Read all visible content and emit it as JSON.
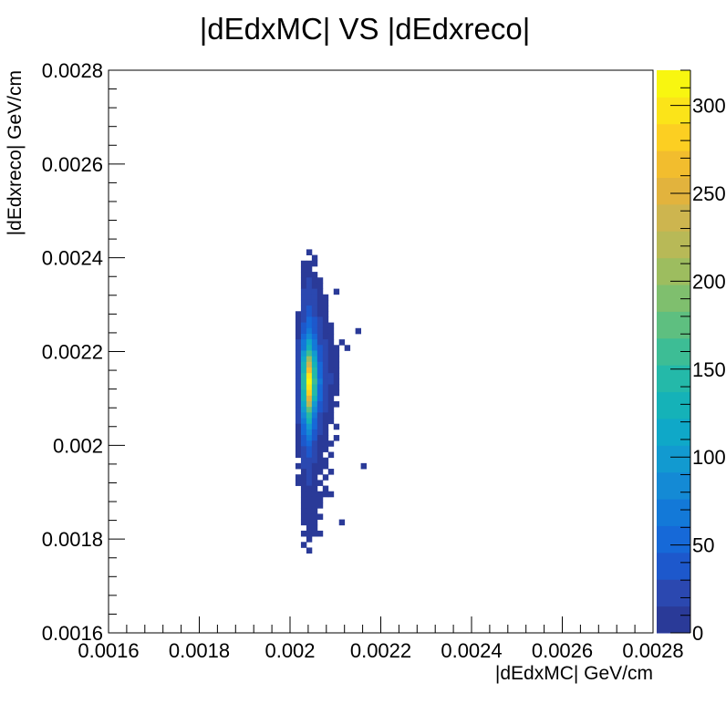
{
  "chart_data": {
    "type": "heatmap",
    "title": "|dEdxMC| VS |dEdxreco|",
    "xlabel": "|dEdxMC| GeV/cm",
    "ylabel": "|dEdxreco| GeV/cm",
    "xlim": [
      0.0016,
      0.0028
    ],
    "ylim": [
      0.0016,
      0.0028
    ],
    "x_ticks": [
      "0.0016",
      "0.0018",
      "0.002",
      "0.0022",
      "0.0024",
      "0.0026",
      "0.0028"
    ],
    "y_ticks": [
      "0.0016",
      "0.0018",
      "0.002",
      "0.0022",
      "0.0024",
      "0.0026",
      "0.0028"
    ],
    "colorbar": {
      "min": 0,
      "max": 320,
      "ticks": [
        "0",
        "50",
        "100",
        "150",
        "200",
        "250",
        "300"
      ],
      "tick_values": [
        0,
        50,
        100,
        150,
        200,
        250,
        300
      ],
      "colors": [
        "#2a3a98",
        "#2b48b0",
        "#1d58cc",
        "#1669d8",
        "#1379d8",
        "#148ad5",
        "#129ad0",
        "#0fa8c8",
        "#15b2b8",
        "#24b9a9",
        "#3dbd95",
        "#5ebf80",
        "#7fbf6e",
        "#9dbd5f",
        "#b8b957",
        "#cdb54f",
        "#e2b33d",
        "#f2bd2e",
        "#fccf22",
        "#fbe419",
        "#f8f610"
      ]
    },
    "grid": false,
    "legend": "none",
    "bin_width": 1.2e-05,
    "cells": [
      [
        0.002042,
        0.002412,
        6
      ],
      [
        0.002054,
        0.0024,
        6
      ],
      [
        0.00203,
        0.002388,
        8
      ],
      [
        0.002042,
        0.002388,
        10
      ],
      [
        0.002054,
        0.002388,
        8
      ],
      [
        0.00203,
        0.002376,
        8
      ],
      [
        0.002042,
        0.002376,
        12
      ],
      [
        0.00203,
        0.002364,
        9
      ],
      [
        0.002042,
        0.002364,
        14
      ],
      [
        0.002054,
        0.002364,
        10
      ],
      [
        0.00203,
        0.002352,
        12
      ],
      [
        0.002042,
        0.002352,
        16
      ],
      [
        0.002054,
        0.002352,
        12
      ],
      [
        0.002066,
        0.002352,
        6
      ],
      [
        0.00203,
        0.00234,
        14
      ],
      [
        0.002042,
        0.00234,
        20
      ],
      [
        0.002054,
        0.00234,
        14
      ],
      [
        0.002066,
        0.00234,
        8
      ],
      [
        0.00203,
        0.002328,
        16
      ],
      [
        0.002042,
        0.002328,
        22
      ],
      [
        0.002054,
        0.002328,
        16
      ],
      [
        0.002066,
        0.002328,
        8
      ],
      [
        0.002102,
        0.002328,
        6
      ],
      [
        0.00203,
        0.002316,
        18
      ],
      [
        0.002042,
        0.002316,
        26
      ],
      [
        0.002054,
        0.002316,
        18
      ],
      [
        0.002066,
        0.002316,
        10
      ],
      [
        0.002078,
        0.002316,
        6
      ],
      [
        0.00203,
        0.002304,
        20
      ],
      [
        0.002042,
        0.002304,
        30
      ],
      [
        0.002054,
        0.002304,
        22
      ],
      [
        0.002066,
        0.002304,
        12
      ],
      [
        0.002078,
        0.002304,
        8
      ],
      [
        0.00203,
        0.002292,
        22
      ],
      [
        0.002042,
        0.002292,
        36
      ],
      [
        0.002054,
        0.002292,
        24
      ],
      [
        0.002066,
        0.002292,
        12
      ],
      [
        0.002078,
        0.002292,
        8
      ],
      [
        0.002018,
        0.00228,
        8
      ],
      [
        0.00203,
        0.00228,
        26
      ],
      [
        0.002042,
        0.00228,
        42
      ],
      [
        0.002054,
        0.00228,
        28
      ],
      [
        0.002066,
        0.00228,
        14
      ],
      [
        0.002078,
        0.00228,
        8
      ],
      [
        0.002018,
        0.002268,
        10
      ],
      [
        0.00203,
        0.002268,
        30
      ],
      [
        0.002042,
        0.002268,
        50
      ],
      [
        0.002054,
        0.002268,
        32
      ],
      [
        0.002066,
        0.002268,
        16
      ],
      [
        0.002078,
        0.002268,
        10
      ],
      [
        0.002018,
        0.002256,
        10
      ],
      [
        0.00203,
        0.002256,
        36
      ],
      [
        0.002042,
        0.002256,
        60
      ],
      [
        0.002054,
        0.002256,
        38
      ],
      [
        0.002066,
        0.002256,
        18
      ],
      [
        0.002078,
        0.002256,
        10
      ],
      [
        0.00209,
        0.002256,
        6
      ],
      [
        0.002018,
        0.002244,
        12
      ],
      [
        0.00203,
        0.002244,
        44
      ],
      [
        0.002042,
        0.002244,
        72
      ],
      [
        0.002054,
        0.002244,
        44
      ],
      [
        0.002066,
        0.002244,
        20
      ],
      [
        0.002078,
        0.002244,
        12
      ],
      [
        0.00209,
        0.002244,
        8
      ],
      [
        0.00215,
        0.002244,
        6
      ],
      [
        0.002018,
        0.002232,
        14
      ],
      [
        0.00203,
        0.002232,
        52
      ],
      [
        0.002042,
        0.002232,
        88
      ],
      [
        0.002054,
        0.002232,
        52
      ],
      [
        0.002066,
        0.002232,
        24
      ],
      [
        0.002078,
        0.002232,
        14
      ],
      [
        0.00209,
        0.002232,
        8
      ],
      [
        0.002018,
        0.00222,
        16
      ],
      [
        0.00203,
        0.00222,
        62
      ],
      [
        0.002042,
        0.00222,
        108
      ],
      [
        0.002054,
        0.00222,
        62
      ],
      [
        0.002066,
        0.00222,
        28
      ],
      [
        0.002078,
        0.00222,
        16
      ],
      [
        0.00209,
        0.00222,
        10
      ],
      [
        0.002114,
        0.00222,
        6
      ],
      [
        0.002018,
        0.002208,
        18
      ],
      [
        0.00203,
        0.002208,
        76
      ],
      [
        0.002042,
        0.002208,
        135
      ],
      [
        0.002054,
        0.002208,
        76
      ],
      [
        0.002066,
        0.002208,
        32
      ],
      [
        0.002078,
        0.002208,
        18
      ],
      [
        0.00209,
        0.002208,
        10
      ],
      [
        0.002102,
        0.002208,
        8
      ],
      [
        0.002126,
        0.002208,
        6
      ],
      [
        0.002018,
        0.002196,
        22
      ],
      [
        0.00203,
        0.002196,
        92
      ],
      [
        0.002042,
        0.002196,
        165
      ],
      [
        0.002054,
        0.002196,
        92
      ],
      [
        0.002066,
        0.002196,
        38
      ],
      [
        0.002078,
        0.002196,
        20
      ],
      [
        0.00209,
        0.002196,
        12
      ],
      [
        0.002102,
        0.002196,
        8
      ],
      [
        0.002018,
        0.002184,
        24
      ],
      [
        0.00203,
        0.002184,
        108
      ],
      [
        0.002042,
        0.002184,
        200
      ],
      [
        0.002054,
        0.002184,
        110
      ],
      [
        0.002066,
        0.002184,
        44
      ],
      [
        0.002078,
        0.002184,
        22
      ],
      [
        0.00209,
        0.002184,
        12
      ],
      [
        0.002102,
        0.002184,
        8
      ],
      [
        0.002018,
        0.002172,
        26
      ],
      [
        0.00203,
        0.002172,
        122
      ],
      [
        0.002042,
        0.002172,
        235
      ],
      [
        0.002054,
        0.002172,
        126
      ],
      [
        0.002066,
        0.002172,
        50
      ],
      [
        0.002078,
        0.002172,
        24
      ],
      [
        0.00209,
        0.002172,
        14
      ],
      [
        0.002102,
        0.002172,
        8
      ],
      [
        0.002018,
        0.00216,
        28
      ],
      [
        0.00203,
        0.00216,
        135
      ],
      [
        0.002042,
        0.00216,
        265
      ],
      [
        0.002054,
        0.00216,
        140
      ],
      [
        0.002066,
        0.00216,
        56
      ],
      [
        0.002078,
        0.00216,
        26
      ],
      [
        0.00209,
        0.00216,
        14
      ],
      [
        0.002102,
        0.00216,
        8
      ],
      [
        0.002018,
        0.002148,
        28
      ],
      [
        0.00203,
        0.002148,
        142
      ],
      [
        0.002042,
        0.002148,
        290
      ],
      [
        0.002054,
        0.002148,
        150
      ],
      [
        0.002066,
        0.002148,
        60
      ],
      [
        0.002078,
        0.002148,
        28
      ],
      [
        0.00209,
        0.002148,
        16
      ],
      [
        0.002102,
        0.002148,
        8
      ],
      [
        0.002018,
        0.002136,
        28
      ],
      [
        0.00203,
        0.002136,
        145
      ],
      [
        0.002042,
        0.002136,
        305
      ],
      [
        0.002054,
        0.002136,
        155
      ],
      [
        0.002066,
        0.002136,
        62
      ],
      [
        0.002078,
        0.002136,
        28
      ],
      [
        0.00209,
        0.002136,
        16
      ],
      [
        0.002102,
        0.002136,
        8
      ],
      [
        0.002018,
        0.002124,
        28
      ],
      [
        0.00203,
        0.002124,
        142
      ],
      [
        0.002042,
        0.002124,
        300
      ],
      [
        0.002054,
        0.002124,
        150
      ],
      [
        0.002066,
        0.002124,
        60
      ],
      [
        0.002078,
        0.002124,
        26
      ],
      [
        0.00209,
        0.002124,
        14
      ],
      [
        0.002102,
        0.002124,
        8
      ],
      [
        0.002018,
        0.002112,
        26
      ],
      [
        0.00203,
        0.002112,
        135
      ],
      [
        0.002042,
        0.002112,
        280
      ],
      [
        0.002054,
        0.002112,
        140
      ],
      [
        0.002066,
        0.002112,
        54
      ],
      [
        0.002078,
        0.002112,
        24
      ],
      [
        0.00209,
        0.002112,
        12
      ],
      [
        0.002102,
        0.002112,
        6
      ],
      [
        0.002018,
        0.0021,
        24
      ],
      [
        0.00203,
        0.0021,
        122
      ],
      [
        0.002042,
        0.0021,
        250
      ],
      [
        0.002054,
        0.0021,
        124
      ],
      [
        0.002066,
        0.0021,
        48
      ],
      [
        0.002078,
        0.0021,
        22
      ],
      [
        0.00209,
        0.0021,
        12
      ],
      [
        0.002018,
        0.002088,
        22
      ],
      [
        0.00203,
        0.002088,
        108
      ],
      [
        0.002042,
        0.002088,
        215
      ],
      [
        0.002054,
        0.002088,
        104
      ],
      [
        0.002066,
        0.002088,
        42
      ],
      [
        0.002078,
        0.002088,
        20
      ],
      [
        0.00209,
        0.002088,
        10
      ],
      [
        0.002102,
        0.002088,
        6
      ],
      [
        0.002018,
        0.002076,
        20
      ],
      [
        0.00203,
        0.002076,
        94
      ],
      [
        0.002042,
        0.002076,
        180
      ],
      [
        0.002054,
        0.002076,
        86
      ],
      [
        0.002066,
        0.002076,
        36
      ],
      [
        0.002078,
        0.002076,
        16
      ],
      [
        0.00209,
        0.002076,
        8
      ],
      [
        0.002018,
        0.002064,
        18
      ],
      [
        0.00203,
        0.002064,
        80
      ],
      [
        0.002042,
        0.002064,
        150
      ],
      [
        0.002054,
        0.002064,
        70
      ],
      [
        0.002066,
        0.002064,
        30
      ],
      [
        0.002078,
        0.002064,
        14
      ],
      [
        0.00209,
        0.002064,
        8
      ],
      [
        0.002018,
        0.002052,
        16
      ],
      [
        0.00203,
        0.002052,
        68
      ],
      [
        0.002042,
        0.002052,
        122
      ],
      [
        0.002054,
        0.002052,
        58
      ],
      [
        0.002066,
        0.002052,
        26
      ],
      [
        0.002078,
        0.002052,
        12
      ],
      [
        0.00209,
        0.002052,
        6
      ],
      [
        0.002018,
        0.00204,
        14
      ],
      [
        0.00203,
        0.00204,
        56
      ],
      [
        0.002042,
        0.00204,
        100
      ],
      [
        0.002054,
        0.00204,
        48
      ],
      [
        0.002066,
        0.00204,
        22
      ],
      [
        0.002078,
        0.00204,
        10
      ],
      [
        0.002102,
        0.00204,
        6
      ],
      [
        0.002018,
        0.002028,
        12
      ],
      [
        0.00203,
        0.002028,
        46
      ],
      [
        0.002042,
        0.002028,
        82
      ],
      [
        0.002054,
        0.002028,
        40
      ],
      [
        0.002066,
        0.002028,
        18
      ],
      [
        0.002078,
        0.002028,
        8
      ],
      [
        0.002018,
        0.002016,
        10
      ],
      [
        0.00203,
        0.002016,
        38
      ],
      [
        0.002042,
        0.002016,
        66
      ],
      [
        0.002054,
        0.002016,
        32
      ],
      [
        0.002066,
        0.002016,
        14
      ],
      [
        0.002078,
        0.002016,
        8
      ],
      [
        0.002102,
        0.002016,
        6
      ],
      [
        0.002018,
        0.002004,
        8
      ],
      [
        0.00203,
        0.002004,
        32
      ],
      [
        0.002042,
        0.002004,
        54
      ],
      [
        0.002054,
        0.002004,
        26
      ],
      [
        0.002066,
        0.002004,
        12
      ],
      [
        0.002078,
        0.002004,
        6
      ],
      [
        0.00209,
        0.002004,
        6
      ],
      [
        0.002018,
        0.001992,
        8
      ],
      [
        0.00203,
        0.001992,
        26
      ],
      [
        0.002042,
        0.001992,
        44
      ],
      [
        0.002054,
        0.001992,
        22
      ],
      [
        0.002066,
        0.001992,
        10
      ],
      [
        0.002078,
        0.001992,
        6
      ],
      [
        0.002018,
        0.00198,
        6
      ],
      [
        0.00203,
        0.00198,
        22
      ],
      [
        0.002042,
        0.00198,
        36
      ],
      [
        0.002054,
        0.00198,
        18
      ],
      [
        0.002066,
        0.00198,
        8
      ],
      [
        0.00209,
        0.00198,
        6
      ],
      [
        0.00203,
        0.001968,
        18
      ],
      [
        0.002042,
        0.001968,
        30
      ],
      [
        0.002054,
        0.001968,
        16
      ],
      [
        0.002066,
        0.001968,
        8
      ],
      [
        0.002078,
        0.001968,
        6
      ],
      [
        0.002018,
        0.001956,
        6
      ],
      [
        0.00203,
        0.001956,
        16
      ],
      [
        0.002042,
        0.001956,
        26
      ],
      [
        0.002054,
        0.001956,
        14
      ],
      [
        0.002066,
        0.001956,
        6
      ],
      [
        0.002078,
        0.001956,
        6
      ],
      [
        0.002162,
        0.001956,
        6
      ],
      [
        0.00203,
        0.001944,
        14
      ],
      [
        0.002042,
        0.001944,
        22
      ],
      [
        0.002054,
        0.001944,
        12
      ],
      [
        0.002066,
        0.001944,
        6
      ],
      [
        0.00209,
        0.001944,
        6
      ],
      [
        0.002018,
        0.001932,
        6
      ],
      [
        0.00203,
        0.001932,
        12
      ],
      [
        0.002042,
        0.001932,
        18
      ],
      [
        0.002054,
        0.001932,
        10
      ],
      [
        0.002078,
        0.001932,
        6
      ],
      [
        0.002018,
        0.00192,
        6
      ],
      [
        0.00203,
        0.00192,
        10
      ],
      [
        0.002042,
        0.00192,
        16
      ],
      [
        0.002054,
        0.00192,
        8
      ],
      [
        0.002066,
        0.00192,
        6
      ],
      [
        0.00203,
        0.001908,
        10
      ],
      [
        0.002042,
        0.001908,
        14
      ],
      [
        0.002054,
        0.001908,
        8
      ],
      [
        0.002078,
        0.001908,
        6
      ],
      [
        0.00203,
        0.001896,
        8
      ],
      [
        0.002042,
        0.001896,
        12
      ],
      [
        0.002054,
        0.001896,
        8
      ],
      [
        0.002066,
        0.001896,
        6
      ],
      [
        0.002078,
        0.001896,
        6
      ],
      [
        0.00209,
        0.001896,
        6
      ],
      [
        0.00203,
        0.001884,
        8
      ],
      [
        0.002042,
        0.001884,
        10
      ],
      [
        0.002054,
        0.001884,
        8
      ],
      [
        0.002066,
        0.001884,
        6
      ],
      [
        0.00203,
        0.001872,
        6
      ],
      [
        0.002042,
        0.001872,
        10
      ],
      [
        0.002054,
        0.001872,
        6
      ],
      [
        0.002066,
        0.001872,
        6
      ],
      [
        0.00203,
        0.00186,
        6
      ],
      [
        0.002042,
        0.00186,
        8
      ],
      [
        0.002054,
        0.00186,
        6
      ],
      [
        0.00203,
        0.001848,
        6
      ],
      [
        0.002042,
        0.001848,
        8
      ],
      [
        0.002054,
        0.001848,
        6
      ],
      [
        0.002066,
        0.001848,
        6
      ],
      [
        0.00203,
        0.001836,
        6
      ],
      [
        0.002042,
        0.001836,
        6
      ],
      [
        0.002054,
        0.001836,
        6
      ],
      [
        0.002114,
        0.001836,
        6
      ],
      [
        0.002042,
        0.001824,
        6
      ],
      [
        0.002054,
        0.001824,
        6
      ],
      [
        0.00203,
        0.001812,
        6
      ],
      [
        0.002042,
        0.001812,
        6
      ],
      [
        0.002054,
        0.001812,
        6
      ],
      [
        0.002066,
        0.001812,
        6
      ],
      [
        0.002042,
        0.0018,
        6
      ],
      [
        0.00203,
        0.001788,
        6
      ],
      [
        0.002042,
        0.001776,
        6
      ]
    ]
  }
}
